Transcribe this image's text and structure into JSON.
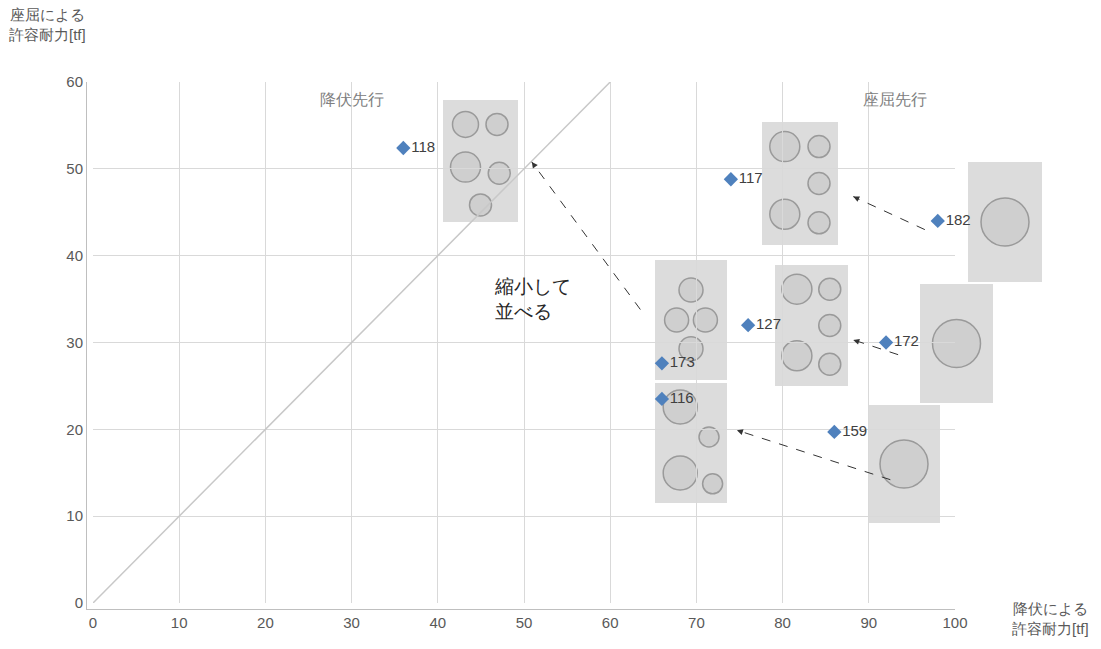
{
  "chart_data": {
    "type": "scatter",
    "x_label": [
      "降伏による",
      "許容耐力[tf]"
    ],
    "y_label": [
      "座屈による",
      "許容耐力[tf]"
    ],
    "x": [
      36,
      74,
      98,
      76,
      92,
      66,
      66,
      86
    ],
    "values": [
      52.4,
      48.8,
      44,
      32,
      30,
      27.6,
      23.5,
      19.7
    ],
    "labels": [
      "118",
      "117",
      "182",
      "127",
      "172",
      "173",
      "116",
      "159"
    ],
    "color": "#4f81bd",
    "marker": "diamond",
    "reference_line": {
      "x": [
        0,
        60
      ],
      "values": [
        0,
        60
      ]
    },
    "annotations": [
      {
        "text": [
          "降伏先行"
        ],
        "x": 30,
        "y": 58
      },
      {
        "text": [
          "座屈先行"
        ],
        "x": 93,
        "y": 58
      },
      {
        "text": [
          "縮小して",
          "並べる"
        ],
        "x": 51,
        "y": 35
      }
    ],
    "xlim": [
      0,
      100
    ],
    "xticks": [
      0,
      10,
      20,
      30,
      40,
      50,
      60,
      70,
      80,
      90,
      100
    ],
    "ylim": [
      0,
      60
    ],
    "yticks": [
      0,
      10,
      20,
      30,
      40,
      50,
      60
    ],
    "grid": true
  }
}
